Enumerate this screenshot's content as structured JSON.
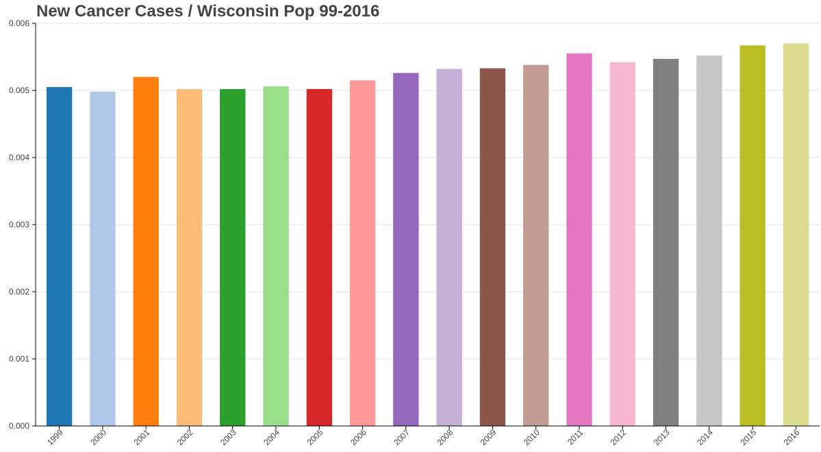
{
  "chart_data": {
    "type": "bar",
    "title": "New Cancer Cases / Wisconsin Pop 99-2016",
    "xlabel": "",
    "ylabel": "",
    "categories": [
      "1999",
      "2000",
      "2001",
      "2002",
      "2003",
      "2004",
      "2005",
      "2006",
      "2007",
      "2008",
      "2009",
      "2010",
      "2011",
      "2012",
      "2013",
      "2014",
      "2015",
      "2016"
    ],
    "values": [
      0.00505,
      0.00498,
      0.0052,
      0.00502,
      0.00502,
      0.00506,
      0.00502,
      0.00515,
      0.00526,
      0.00532,
      0.00533,
      0.00538,
      0.00555,
      0.00542,
      0.00547,
      0.00552,
      0.00567,
      0.0057
    ],
    "colors": [
      "#1f77b4",
      "#aec7e8",
      "#ff7f0e",
      "#ffbb78",
      "#2ca02c",
      "#98df8a",
      "#d62728",
      "#ff9896",
      "#9467bd",
      "#c5b0d5",
      "#8c564b",
      "#c49c94",
      "#e377c2",
      "#f7b6d2",
      "#7f7f7f",
      "#c7c7c7",
      "#bcbd22",
      "#dbdb8d"
    ],
    "ylim": [
      0,
      0.006
    ],
    "yticks": [
      "0.000",
      "0.001",
      "0.002",
      "0.003",
      "0.004",
      "0.005",
      "0.006"
    ],
    "grid": true
  }
}
